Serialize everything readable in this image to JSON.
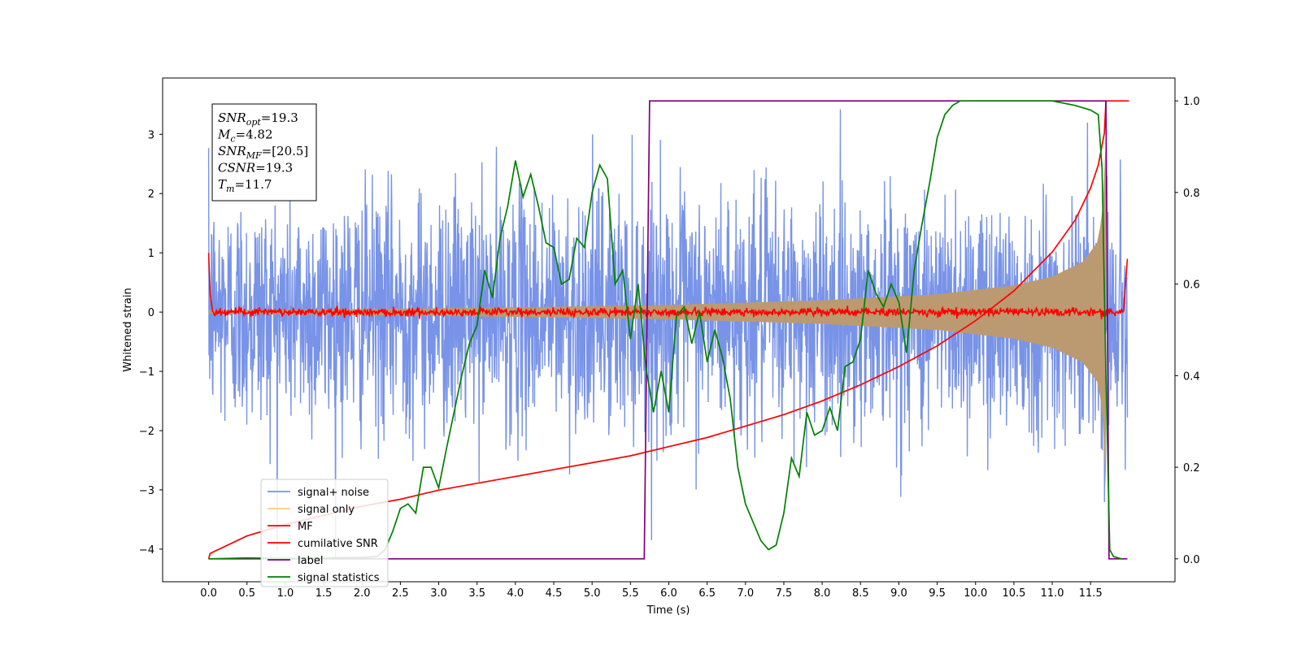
{
  "chart_data": {
    "type": "line",
    "xlabel": "Time (s)",
    "ylabel": "Whitened strain",
    "xlim": [
      -0.6,
      12.6
    ],
    "ylim": [
      -4.55,
      3.95
    ],
    "ylim_right": [
      -0.05,
      1.05
    ],
    "x_ticks": [
      0.0,
      0.5,
      1.0,
      1.5,
      2.0,
      2.5,
      3.0,
      3.5,
      4.0,
      4.5,
      5.0,
      5.5,
      6.0,
      6.5,
      7.0,
      7.5,
      8.0,
      8.5,
      9.0,
      9.5,
      10.0,
      10.5,
      11.0,
      11.5
    ],
    "x_tick_labels": [
      "0.0",
      "0.5",
      "1.0",
      "1.5",
      "2.0",
      "2.5",
      "3.0",
      "3.5",
      "4.0",
      "4.5",
      "5.0",
      "5.5",
      "6.0",
      "6.5",
      "7.0",
      "7.5",
      "8.0",
      "8.5",
      "9.0",
      "9.5",
      "10.0",
      "10.5",
      "11.0",
      "11.5"
    ],
    "y_ticks": [
      3,
      2,
      1,
      0,
      -1,
      -2,
      -3,
      -4
    ],
    "y_tick_labels": [
      "3",
      "2",
      "1",
      "0",
      "−1",
      "−2",
      "−3",
      "−4"
    ],
    "y_right_ticks": [
      1.0,
      0.8,
      0.6,
      0.4,
      0.2,
      0.0
    ],
    "y_right_tick_labels": [
      "1.0",
      "0.8",
      "0.6",
      "0.4",
      "0.2",
      "0.0"
    ],
    "grid": false,
    "legend_position": "lower-left",
    "annotation": {
      "lines": [
        {
          "main": "SNR",
          "sub": "opt",
          "value": "=19.3"
        },
        {
          "main": "M",
          "sub": "c",
          "value": "=4.82"
        },
        {
          "main": "SNR",
          "sub": "MF",
          "value": "=[20.5]"
        },
        {
          "main": "CSNR",
          "sub": "",
          "value": "=19.3"
        },
        {
          "main": "T",
          "sub": "m",
          "value": "=11.7"
        }
      ]
    },
    "series": [
      {
        "name": "signal+ noise",
        "color": "#7893e8",
        "axis": "left",
        "style": "noise",
        "x_range": [
          0.0,
          11.98
        ],
        "envelope_typical": 2.0,
        "peak_max": 3.5,
        "peak_min": -4.15
      },
      {
        "name": "signal only",
        "color": "#ffcc77",
        "axis": "left",
        "style": "chirp",
        "x_range": [
          0.0,
          11.98
        ],
        "envelope": {
          "x": [
            0.0,
            2.0,
            4.0,
            6.0,
            8.0,
            9.5,
            10.5,
            11.0,
            11.4,
            11.6,
            11.68,
            11.7
          ],
          "amp": [
            0.03,
            0.05,
            0.08,
            0.12,
            0.2,
            0.3,
            0.45,
            0.6,
            0.85,
            1.2,
            2.0,
            3.0
          ]
        }
      },
      {
        "name": "MF",
        "color": "#ff0000",
        "axis": "left",
        "style": "mf",
        "x_range": [
          0.0,
          11.98
        ],
        "baseline": 0.0,
        "jitter": 0.07,
        "start_value": 1.0,
        "end_value": 0.9
      },
      {
        "name": "cumilative SNR",
        "color": "#ff0000",
        "axis": "right",
        "x": [
          0.0,
          0.02,
          0.5,
          1.0,
          1.5,
          2.0,
          2.5,
          3.0,
          3.5,
          4.0,
          4.5,
          5.0,
          5.5,
          6.0,
          6.5,
          7.0,
          7.5,
          8.0,
          8.5,
          9.0,
          9.5,
          10.0,
          10.5,
          11.0,
          11.3,
          11.5,
          11.6,
          11.68,
          11.7,
          12.0
        ],
        "y": [
          0.0,
          0.012,
          0.05,
          0.075,
          0.095,
          0.115,
          0.13,
          0.15,
          0.165,
          0.18,
          0.195,
          0.21,
          0.225,
          0.245,
          0.265,
          0.29,
          0.315,
          0.345,
          0.38,
          0.42,
          0.465,
          0.52,
          0.585,
          0.67,
          0.74,
          0.81,
          0.86,
          0.93,
          1.0,
          1.0
        ]
      },
      {
        "name": "label",
        "color": "#800080",
        "axis": "right",
        "x": [
          0.0,
          5.68,
          5.75,
          11.7,
          11.74,
          11.98
        ],
        "y": [
          0.0,
          0.0,
          1.0,
          1.0,
          0.0,
          0.0
        ]
      },
      {
        "name": "signal statistics",
        "color": "#008000",
        "axis": "right",
        "x": [
          0.0,
          0.5,
          1.0,
          1.5,
          2.0,
          2.2,
          2.3,
          2.4,
          2.5,
          2.6,
          2.7,
          2.8,
          2.9,
          3.0,
          3.1,
          3.2,
          3.3,
          3.4,
          3.5,
          3.6,
          3.7,
          3.8,
          3.9,
          4.0,
          4.1,
          4.2,
          4.3,
          4.4,
          4.5,
          4.6,
          4.7,
          4.8,
          4.9,
          5.0,
          5.1,
          5.2,
          5.3,
          5.4,
          5.5,
          5.6,
          5.7,
          5.8,
          5.9,
          6.0,
          6.1,
          6.2,
          6.3,
          6.4,
          6.5,
          6.6,
          6.7,
          6.8,
          6.9,
          7.0,
          7.1,
          7.2,
          7.3,
          7.4,
          7.5,
          7.6,
          7.7,
          7.8,
          7.9,
          8.0,
          8.1,
          8.2,
          8.3,
          8.4,
          8.5,
          8.6,
          8.7,
          8.8,
          8.9,
          9.0,
          9.1,
          9.2,
          9.3,
          9.4,
          9.5,
          9.6,
          9.7,
          9.8,
          10.0,
          10.5,
          11.0,
          11.3,
          11.5,
          11.6,
          11.65,
          11.7,
          11.75,
          11.8,
          11.9
        ],
        "y": [
          0.0,
          0.002,
          0.001,
          0.002,
          0.003,
          0.005,
          0.02,
          0.06,
          0.11,
          0.12,
          0.1,
          0.2,
          0.2,
          0.155,
          0.24,
          0.32,
          0.4,
          0.47,
          0.51,
          0.63,
          0.57,
          0.7,
          0.77,
          0.87,
          0.79,
          0.84,
          0.77,
          0.69,
          0.68,
          0.6,
          0.61,
          0.7,
          0.68,
          0.8,
          0.86,
          0.83,
          0.6,
          0.63,
          0.48,
          0.6,
          0.42,
          0.32,
          0.41,
          0.32,
          0.53,
          0.55,
          0.47,
          0.54,
          0.43,
          0.5,
          0.44,
          0.35,
          0.2,
          0.12,
          0.08,
          0.04,
          0.02,
          0.03,
          0.1,
          0.22,
          0.18,
          0.32,
          0.27,
          0.28,
          0.33,
          0.28,
          0.42,
          0.43,
          0.48,
          0.63,
          0.58,
          0.55,
          0.6,
          0.56,
          0.45,
          0.63,
          0.73,
          0.82,
          0.92,
          0.97,
          0.99,
          1.0,
          1.0,
          1.0,
          1.0,
          0.99,
          0.98,
          0.97,
          0.85,
          0.4,
          0.02,
          0.005,
          0.0
        ]
      }
    ]
  }
}
